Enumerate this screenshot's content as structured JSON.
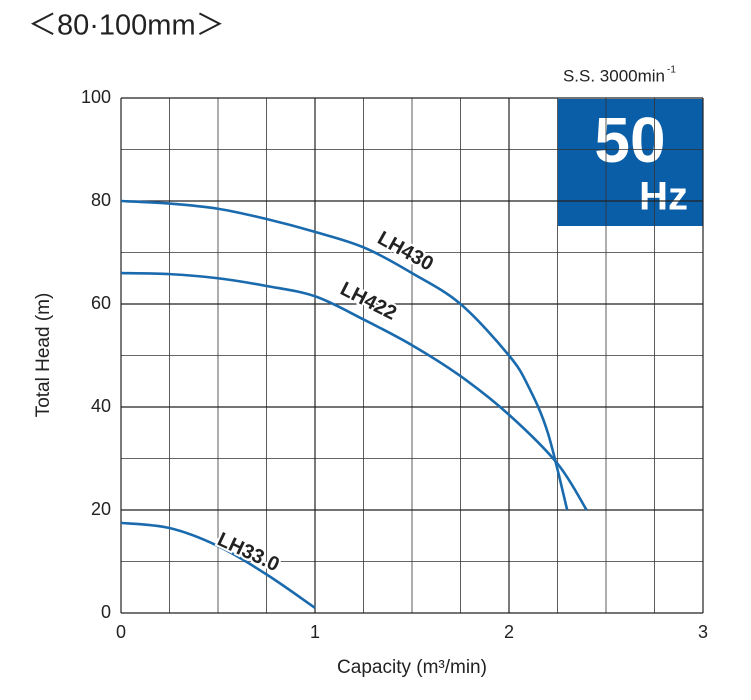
{
  "chart_data": {
    "type": "line",
    "title": "＜80·100mm＞",
    "speed_label": "S.S. 3000min",
    "speed_label_sup": "-1",
    "badge_number": "50",
    "badge_unit": "Hz",
    "badge_color": "#0a5ea8",
    "x_label": "Capacity (m³/min)",
    "y_label": "Total Head (m)",
    "xlim": [
      0,
      3
    ],
    "ylim": [
      0,
      100
    ],
    "xticks": [
      0,
      1,
      2,
      3
    ],
    "yticks": [
      0,
      20,
      40,
      60,
      80,
      100
    ],
    "x_minor_ticks": [
      0.25,
      0.5,
      0.75,
      1.25,
      1.5,
      1.75,
      2.25,
      2.5,
      2.75
    ],
    "y_minor_ticks": [
      10,
      30,
      50,
      70,
      90
    ],
    "grid": true,
    "series": [
      {
        "name": "LH430",
        "color": "#1a6aae",
        "x": [
          0,
          0.25,
          0.5,
          0.75,
          1,
          1.25,
          1.5,
          1.75,
          2,
          2.1,
          2.2,
          2.3
        ],
        "values": [
          80,
          79.5,
          78.5,
          76.5,
          74,
          71,
          66,
          60,
          50,
          44,
          35,
          20
        ]
      },
      {
        "name": "LH422",
        "color": "#1a6aae",
        "x": [
          0,
          0.25,
          0.5,
          0.75,
          1,
          1.25,
          1.5,
          1.75,
          2,
          2.25,
          2.4
        ],
        "values": [
          66,
          65.8,
          65,
          63.5,
          61.5,
          57,
          52,
          46,
          38.5,
          29,
          20
        ]
      },
      {
        "name": "LH33.0",
        "color": "#1a6aae",
        "x": [
          0,
          0.25,
          0.5,
          0.75,
          1
        ],
        "values": [
          17.5,
          16.5,
          13,
          7.5,
          1
        ]
      }
    ]
  }
}
